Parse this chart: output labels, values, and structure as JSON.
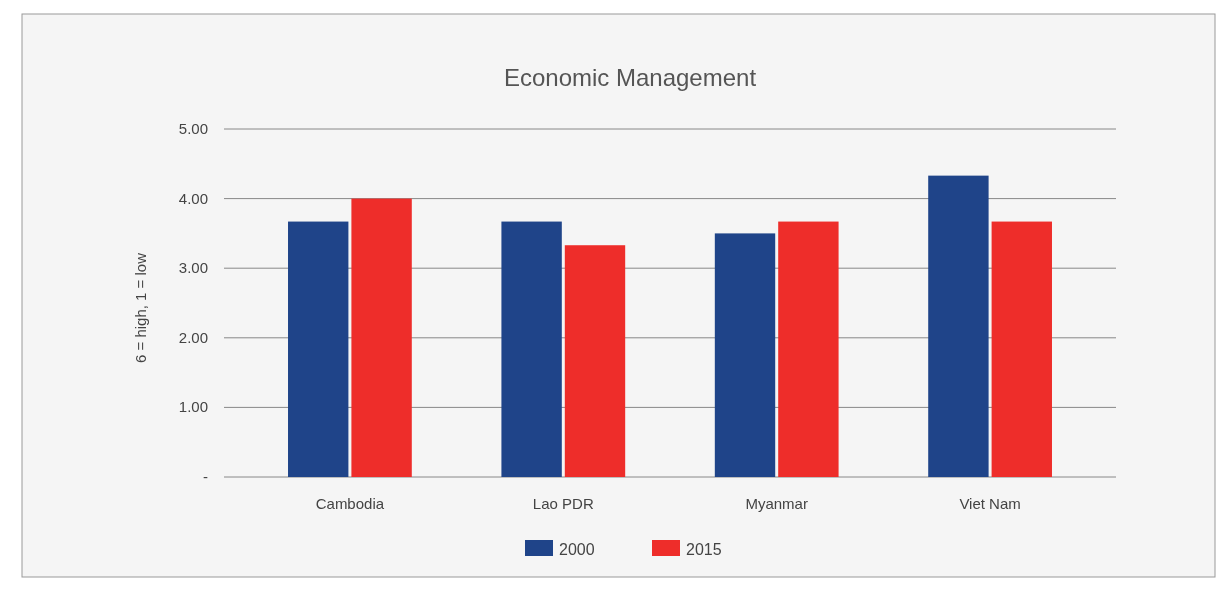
{
  "chart_data": {
    "type": "bar",
    "title": "Economic Management",
    "ylabel": "6 = high, 1 = low",
    "categories": [
      "Cambodia",
      "Lao PDR",
      "Myanmar",
      "Viet Nam"
    ],
    "series": [
      {
        "name": "2000",
        "color": "#1f4489",
        "values": [
          3.67,
          3.67,
          3.5,
          4.33
        ]
      },
      {
        "name": "2015",
        "color": "#ee2d2a",
        "values": [
          4.0,
          3.33,
          3.67,
          3.67
        ]
      }
    ],
    "ylim": [
      0,
      5
    ],
    "yticks": [
      {
        "value": 0,
        "label": "-"
      },
      {
        "value": 1,
        "label": "1.00"
      },
      {
        "value": 2,
        "label": "2.00"
      },
      {
        "value": 3,
        "label": "3.00"
      },
      {
        "value": 4,
        "label": "4.00"
      },
      {
        "value": 5,
        "label": "5.00"
      }
    ],
    "grid": "y",
    "legend": "bottom"
  }
}
